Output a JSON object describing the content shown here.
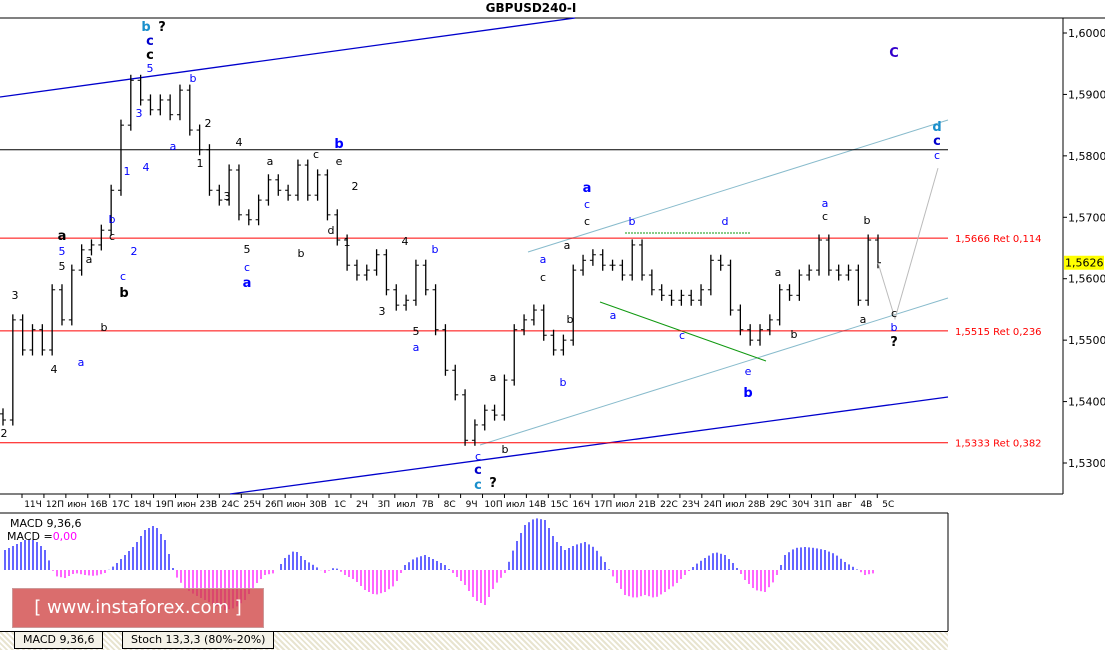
{
  "window_title": "GBPUSD240-I",
  "current_price": "1,5626",
  "colors": {
    "bull_hist": "#0000ff",
    "bear_hist": "#ff00ff",
    "fib": "#ff0000",
    "channel": "#0000cc",
    "inner_channel": "#88bbcc",
    "price_tag_bg": "#ffff00"
  },
  "chart_data": {
    "type": "bar",
    "symbol": "GBPUSD240-I",
    "ylim": [
      1.525,
      1.606
    ],
    "y_ticks": [
      "1,6000",
      "1,5900",
      "1,5800",
      "1,5700",
      "1,5600",
      "1,5500",
      "1,5400",
      "1,5300"
    ],
    "y_tick_values": [
      1.6,
      1.59,
      1.58,
      1.57,
      1.56,
      1.55,
      1.54,
      1.53
    ],
    "x_ticks": [
      "11Ч",
      "12П",
      "июн",
      "16В",
      "17С",
      "18Ч",
      "19П",
      "июн",
      "23В",
      "24С",
      "25Ч",
      "26П",
      "июн",
      "30В",
      "1С",
      "2Ч",
      "3П",
      "июл",
      "7В",
      "8С",
      "9Ч",
      "10П",
      "июл",
      "14В",
      "15С",
      "16Ч",
      "17П",
      "июл",
      "21В",
      "22С",
      "23Ч",
      "24П",
      "июл",
      "28В",
      "29С",
      "30Ч",
      "31П",
      "авг",
      "4В",
      "5С"
    ],
    "closes": [
      1.537,
      1.5533,
      1.5484,
      1.5517,
      1.5484,
      1.5582,
      1.5533,
      1.5614,
      1.5647,
      1.5655,
      1.5679,
      1.5744,
      1.585,
      1.5923,
      1.5891,
      1.5875,
      1.5891,
      1.5867,
      1.5907,
      1.5842,
      1.581,
      1.5744,
      1.5728,
      1.5777,
      1.5704,
      1.5696,
      1.5728,
      1.5761,
      1.5744,
      1.5736,
      1.5785,
      1.5736,
      1.5769,
      1.5704,
      1.5663,
      1.5622,
      1.5606,
      1.5614,
      1.5639,
      1.5582,
      1.5557,
      1.5565,
      1.5622,
      1.5582,
      1.5517,
      1.5451,
      1.5411,
      1.5337,
      1.5362,
      1.5386,
      1.5378,
      1.5435,
      1.5517,
      1.5533,
      1.5549,
      1.5508,
      1.5484,
      1.55,
      1.5614,
      1.563,
      1.5639,
      1.5622,
      1.5622,
      1.5606,
      1.5655,
      1.5606,
      1.5582,
      1.5573,
      1.5565,
      1.5573,
      1.5565,
      1.5582,
      1.563,
      1.5622,
      1.5549,
      1.5517,
      1.55,
      1.5517,
      1.5533,
      1.5582,
      1.5573,
      1.5606,
      1.5614,
      1.5663,
      1.5614,
      1.5606,
      1.5614,
      1.5565,
      1.5663,
      1.5626
    ],
    "fib_levels": [
      {
        "price": 1.5666,
        "label": "1,5666 Ret 0,114"
      },
      {
        "price": 1.5515,
        "label": "1,5515 Ret 0,236"
      },
      {
        "price": 1.5333,
        "label": "1,5333 Ret 0,382"
      }
    ],
    "horizontal_line": 1.581,
    "projection": [
      1.5626,
      1.5535,
      1.578
    ],
    "wave_labels": [
      {
        "text": "b",
        "color": "#1a8fcc",
        "bold": true
      },
      {
        "text": "?",
        "color": "#000",
        "bold": true
      },
      {
        "text": "c",
        "color": "#0000cc",
        "bold": true
      },
      {
        "text": "c",
        "color": "#000",
        "bold": true
      },
      {
        "text": "5",
        "color": "#0000ff"
      },
      {
        "text": "b",
        "color": "#0000ff"
      },
      {
        "text": "3",
        "color": "#0000ff"
      },
      {
        "text": "a",
        "color": "#0000ff"
      },
      {
        "text": "4",
        "color": "#0000ff"
      },
      {
        "text": "1",
        "color": "#0000ff"
      },
      {
        "text": "2",
        "color": "#000"
      },
      {
        "text": "1",
        "color": "#000"
      },
      {
        "text": "4",
        "color": "#000"
      },
      {
        "text": "3",
        "color": "#000"
      },
      {
        "text": "a",
        "color": "#000"
      },
      {
        "text": "c",
        "color": "#000"
      },
      {
        "text": "b",
        "color": "#0000ff",
        "bold": true
      },
      {
        "text": "e",
        "color": "#000"
      },
      {
        "text": "2",
        "color": "#000"
      },
      {
        "text": "d",
        "color": "#000"
      },
      {
        "text": "1",
        "color": "#000"
      },
      {
        "text": "b",
        "color": "#000"
      },
      {
        "text": "5",
        "color": "#000"
      },
      {
        "text": "c",
        "color": "#0000ff"
      },
      {
        "text": "a",
        "color": "#0000ff",
        "bold": true
      },
      {
        "text": "b",
        "color": "#0000ff"
      },
      {
        "text": "c",
        "color": "#0000ff"
      },
      {
        "text": "2",
        "color": "#0000ff"
      },
      {
        "text": "b",
        "color": "#000",
        "bold": true
      },
      {
        "text": "c",
        "color": "#000"
      },
      {
        "text": "a",
        "color": "#000",
        "bold": true
      },
      {
        "text": "5",
        "color": "#0000ff"
      },
      {
        "text": "5",
        "color": "#000"
      },
      {
        "text": "a",
        "color": "#000"
      },
      {
        "text": "3",
        "color": "#000"
      },
      {
        "text": "4",
        "color": "#000"
      },
      {
        "text": "a",
        "color": "#0000ff"
      },
      {
        "text": "b",
        "color": "#000"
      },
      {
        "text": "2",
        "color": "#000"
      },
      {
        "text": "4",
        "color": "#000"
      },
      {
        "text": "b",
        "color": "#0000ff"
      },
      {
        "text": "3",
        "color": "#000"
      },
      {
        "text": "5",
        "color": "#000"
      },
      {
        "text": "a",
        "color": "#0000ff"
      },
      {
        "text": "a",
        "color": "#000"
      },
      {
        "text": "b",
        "color": "#000"
      },
      {
        "text": "c",
        "color": "#0000ff"
      },
      {
        "text": "c",
        "color": "#0000cc",
        "bold": true
      },
      {
        "text": "c",
        "color": "#1a8fcc",
        "bold": true
      },
      {
        "text": "?",
        "color": "#000",
        "bold": true
      },
      {
        "text": "a",
        "color": "#0000ff"
      },
      {
        "text": "c",
        "color": "#000"
      },
      {
        "text": "b",
        "color": "#000"
      },
      {
        "text": "b",
        "color": "#0000ff"
      },
      {
        "text": "a",
        "color": "#000"
      },
      {
        "text": "a",
        "color": "#0000ff",
        "bold": true
      },
      {
        "text": "c",
        "color": "#0000ff"
      },
      {
        "text": "c",
        "color": "#000"
      },
      {
        "text": "b",
        "color": "#0000ff"
      },
      {
        "text": "d",
        "color": "#0000ff"
      },
      {
        "text": "a",
        "color": "#0000ff"
      },
      {
        "text": "c",
        "color": "#0000ff"
      },
      {
        "text": "e",
        "color": "#0000ff"
      },
      {
        "text": "b",
        "color": "#0000ff",
        "bold": true
      },
      {
        "text": "a",
        "color": "#000"
      },
      {
        "text": "b",
        "color": "#000"
      },
      {
        "text": "a",
        "color": "#0000ff"
      },
      {
        "text": "c",
        "color": "#000"
      },
      {
        "text": "b",
        "color": "#000"
      },
      {
        "text": "a",
        "color": "#000"
      },
      {
        "text": "c",
        "color": "#000"
      },
      {
        "text": "b",
        "color": "#0000ff"
      },
      {
        "text": "?",
        "color": "#000",
        "bold": true
      },
      {
        "text": "C",
        "color": "#3300cc",
        "bold": true
      },
      {
        "text": "d",
        "color": "#1a8fcc",
        "bold": true
      },
      {
        "text": "c",
        "color": "#0000cc",
        "bold": true
      },
      {
        "text": "c",
        "color": "#0000ff"
      }
    ],
    "macd": {
      "label": "MACD 9,36,6",
      "value_prefix": "MACD =",
      "value": "0,00",
      "histogram": [
        0.002,
        0.0025,
        0.003,
        0.003,
        0.002,
        -0.0006,
        -0.0008,
        -0.0003,
        -0.0005,
        -0.0006,
        -0.0003,
        0.0005,
        0.0015,
        0.0025,
        0.004,
        0.0045,
        0.003,
        -0.0005,
        -0.0018,
        -0.0025,
        -0.003,
        -0.0035,
        -0.004,
        -0.0038,
        -0.003,
        -0.0015,
        -0.0005,
        -0.0003,
        0.0012,
        0.002,
        0.001,
        0.0004,
        -0.0003,
        0.0003,
        -0.0005,
        -0.001,
        -0.002,
        -0.0025,
        -0.0022,
        -0.0015,
        0.0005,
        0.0012,
        0.0015,
        0.001,
        0.0005,
        -0.0005,
        -0.0015,
        -0.003,
        -0.0035,
        -0.0015,
        -0.0003,
        0.0025,
        0.0045,
        0.0052,
        0.005,
        0.003,
        0.002,
        0.0025,
        0.0028,
        0.0022,
        0.0008,
        -0.001,
        -0.0025,
        -0.0028,
        -0.0025,
        -0.0028,
        -0.0022,
        -0.0015,
        -0.0005,
        0.0005,
        0.0012,
        0.0018,
        0.0015,
        0.0005,
        -0.001,
        -0.002,
        -0.0022,
        -0.001,
        0.0015,
        0.0022,
        0.0023,
        0.0022,
        0.002,
        0.0016,
        0.0008,
        0.0002,
        -0.0005,
        -0.0003
      ]
    }
  },
  "bottom_tabs": [
    "MACD 9,36,6",
    "Stoch 13,3,3 (80%-20%)"
  ],
  "watermark": {
    "left": "[ www.instaforex",
    "right": ".com ]"
  }
}
